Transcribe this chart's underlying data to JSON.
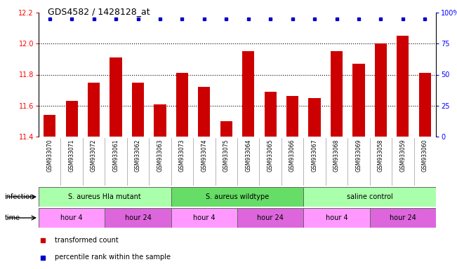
{
  "title": "GDS4582 / 1428128_at",
  "samples": [
    "GSM933070",
    "GSM933071",
    "GSM933072",
    "GSM933061",
    "GSM933062",
    "GSM933063",
    "GSM933073",
    "GSM933074",
    "GSM933075",
    "GSM933064",
    "GSM933065",
    "GSM933066",
    "GSM933067",
    "GSM933068",
    "GSM933069",
    "GSM933058",
    "GSM933059",
    "GSM933060"
  ],
  "bar_values": [
    11.54,
    11.63,
    11.75,
    11.91,
    11.75,
    11.61,
    11.81,
    11.72,
    11.5,
    11.95,
    11.69,
    11.66,
    11.65,
    11.95,
    11.87,
    12.0,
    12.05,
    11.81
  ],
  "percentile_values": [
    100,
    100,
    100,
    100,
    100,
    100,
    100,
    100,
    100,
    100,
    100,
    100,
    100,
    100,
    100,
    100,
    100,
    100
  ],
  "bar_color": "#cc0000",
  "percentile_color": "#0000cc",
  "ylim_left": [
    11.4,
    12.2
  ],
  "ylim_right": [
    0,
    100
  ],
  "yticks_left": [
    11.4,
    11.6,
    11.8,
    12.0,
    12.2
  ],
  "yticks_right": [
    0,
    25,
    50,
    75,
    100
  ],
  "infection_groups": [
    {
      "label": "S. aureus Hla mutant",
      "start": 0,
      "end": 6,
      "color": "#aaffaa"
    },
    {
      "label": "S. aureus wildtype",
      "start": 6,
      "end": 12,
      "color": "#66dd66"
    },
    {
      "label": "saline control",
      "start": 12,
      "end": 18,
      "color": "#aaffaa"
    }
  ],
  "time_groups": [
    {
      "label": "hour 4",
      "start": 0,
      "end": 3,
      "color": "#ff99ff"
    },
    {
      "label": "hour 24",
      "start": 3,
      "end": 6,
      "color": "#dd66dd"
    },
    {
      "label": "hour 4",
      "start": 6,
      "end": 9,
      "color": "#ff99ff"
    },
    {
      "label": "hour 24",
      "start": 9,
      "end": 12,
      "color": "#dd66dd"
    },
    {
      "label": "hour 4",
      "start": 12,
      "end": 15,
      "color": "#ff99ff"
    },
    {
      "label": "hour 24",
      "start": 15,
      "end": 18,
      "color": "#dd66dd"
    }
  ],
  "legend_items": [
    {
      "label": "transformed count",
      "color": "#cc0000"
    },
    {
      "label": "percentile rank within the sample",
      "color": "#0000cc"
    }
  ],
  "infection_label": "infection",
  "time_label": "time",
  "background_color": "#ffffff",
  "sample_bg_color": "#cccccc",
  "grid_color": "#000000"
}
